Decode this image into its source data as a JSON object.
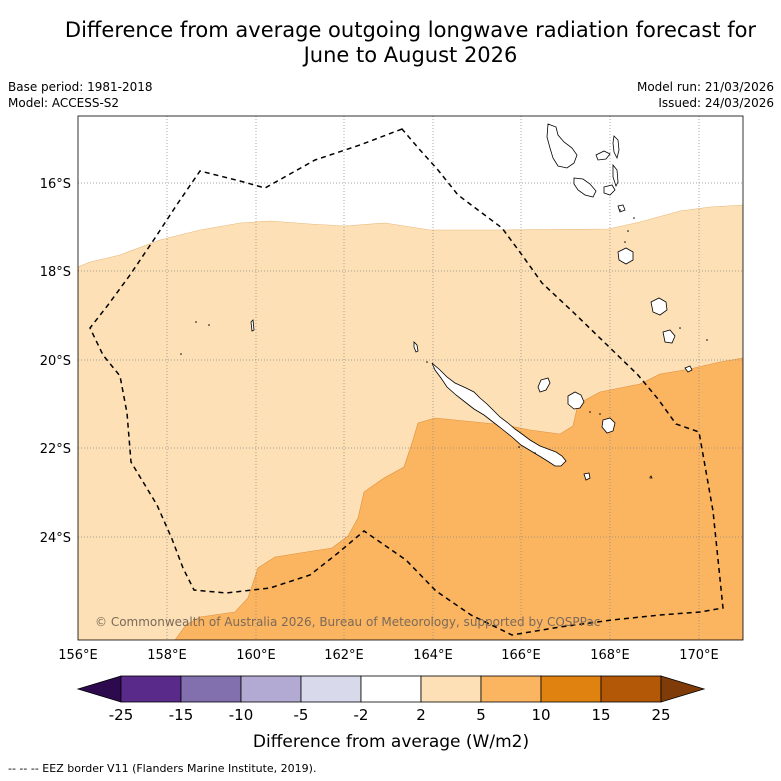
{
  "title_line1": "Difference from average outgoing longwave radiation forecast for",
  "title_line2": "June to August 2026",
  "base_period": "Base period: 1981-2018",
  "model": "Model: ACCESS-S2",
  "model_run": "Model run: 21/03/2026",
  "issued": "Issued: 24/03/2026",
  "copyright": "© Commonwealth of Australia 2026, Bureau of Meteorology, supported by COSPPac",
  "lat_labels": [
    "16°S",
    "18°S",
    "20°S",
    "22°S",
    "24°S"
  ],
  "lon_labels": [
    "156°E",
    "158°E",
    "160°E",
    "162°E",
    "164°E",
    "166°E",
    "168°E",
    "170°E"
  ],
  "colorbar": {
    "labels": [
      "-25",
      "-15",
      "-10",
      "-5",
      "-2",
      "2",
      "5",
      "10",
      "15",
      "25"
    ],
    "colors": [
      "#2d0a4e",
      "#5a2a8a",
      "#8170ad",
      "#b2aad3",
      "#d9d9ec",
      "#ffffff",
      "#fde0b5",
      "#fbb460",
      "#e0820f",
      "#b35806",
      "#7f3b08"
    ],
    "label": "Difference from average (W/m2)"
  },
  "footer": "--  --  -- EEZ border V11 (Flanders Marine Institute, 2019)."
}
